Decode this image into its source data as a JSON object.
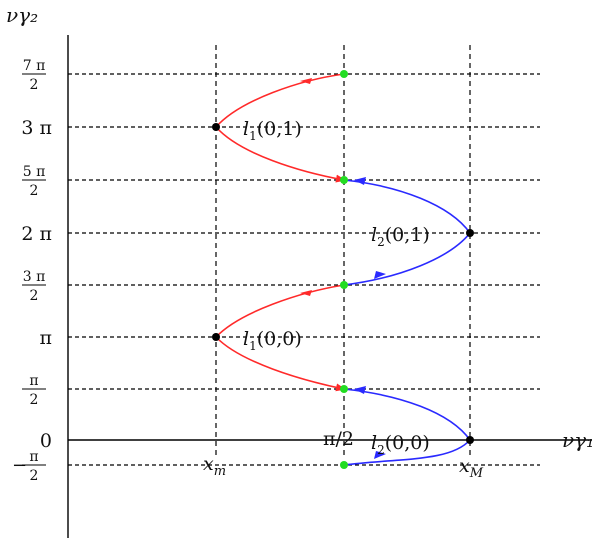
{
  "axes": {
    "x_label": "νγ₁",
    "y_label": "νγ₂"
  },
  "y_ticks": [
    {
      "value": -0.5,
      "num": "π",
      "den": "2",
      "sign": "−"
    },
    {
      "value": 0,
      "text": "0"
    },
    {
      "value": 0.5,
      "num": "π",
      "den": "2",
      "sign": ""
    },
    {
      "value": 1,
      "text": "π"
    },
    {
      "value": 1.5,
      "num": "3 π",
      "den": "2",
      "sign": ""
    },
    {
      "value": 2,
      "text": "2 π"
    },
    {
      "value": 2.5,
      "num": "5 π",
      "den": "2",
      "sign": ""
    },
    {
      "value": 3,
      "text": "3 π"
    },
    {
      "value": 3.5,
      "num": "7 π",
      "den": "2",
      "sign": ""
    }
  ],
  "x_ticks": [
    {
      "key": "xm",
      "text": "x",
      "sub": "m"
    },
    {
      "key": "mid",
      "text": "π/2",
      "sub": ""
    },
    {
      "key": "xM",
      "text": "x",
      "sub": "M"
    }
  ],
  "curve_labels": [
    {
      "id": "l1-01",
      "text": "l",
      "sub": "1",
      "args": "(0,1)"
    },
    {
      "id": "l2-01",
      "text": "l",
      "sub": "2",
      "args": "(0,1)"
    },
    {
      "id": "l1-00",
      "text": "l",
      "sub": "1",
      "args": "(0,0)"
    },
    {
      "id": "l2-00",
      "text": "l",
      "sub": "2",
      "args": "(0,0)"
    }
  ],
  "colors": {
    "red": "#ff2a2a",
    "blue": "#2a2aff",
    "green": "#22dd22",
    "black": "#000000",
    "grid": "#000000"
  }
}
